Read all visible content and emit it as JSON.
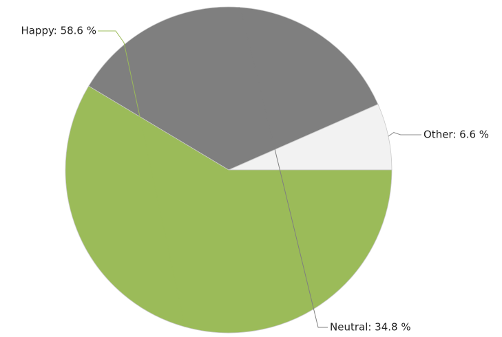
{
  "chart_data": {
    "type": "pie",
    "title": "",
    "slices": [
      {
        "name": "Other",
        "value": 6.6,
        "label": "Other: 6.6 %",
        "color": "#f2f2f2",
        "line_color": "#8c8c8c"
      },
      {
        "name": "Neutral",
        "value": 34.8,
        "label": "Neutral: 34.8 %",
        "color": "#7f7f7f",
        "line_color": "#7f7f7f"
      },
      {
        "name": "Happy",
        "value": 58.6,
        "label": "Happy: 58.6 %",
        "color": "#9bbb59",
        "line_color": "#9bbb59"
      }
    ],
    "legend": "none",
    "start_direction": "right",
    "rotation": "counter-clockwise"
  }
}
